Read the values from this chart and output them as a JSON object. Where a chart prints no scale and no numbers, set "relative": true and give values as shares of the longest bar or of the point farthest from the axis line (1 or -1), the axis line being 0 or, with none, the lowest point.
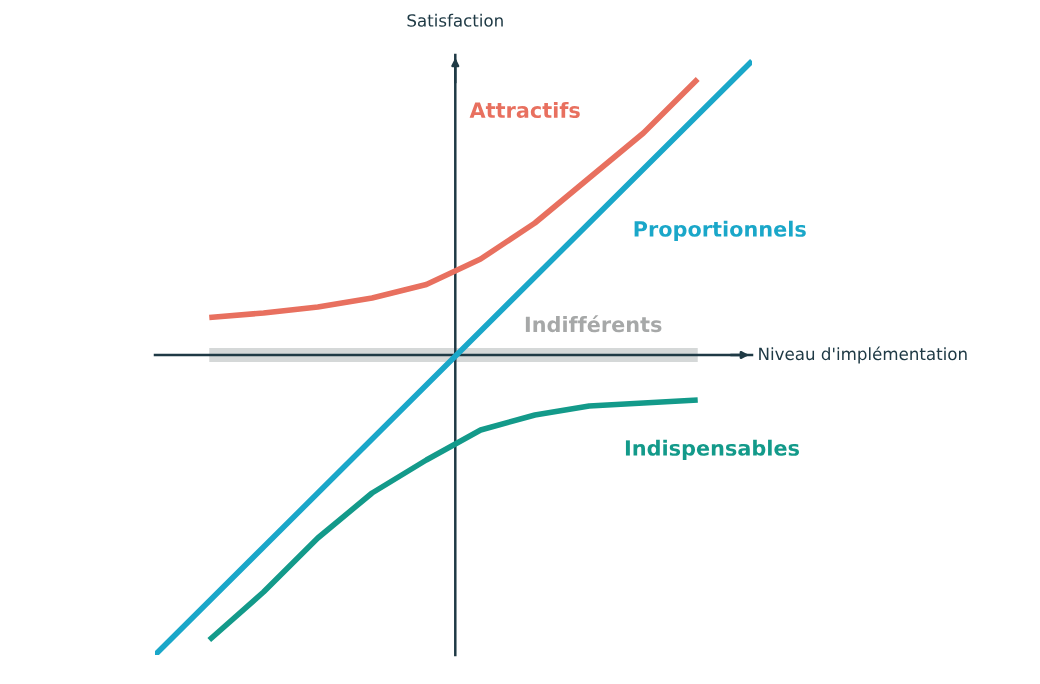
{
  "chart_data": {
    "type": "line",
    "relative": true,
    "xlabel": "Niveau d'implémentation",
    "ylabel": "Satisfaction",
    "marker": "none",
    "line_style": "solid",
    "categories": [
      null,
      null,
      null,
      null,
      null,
      null,
      null,
      null,
      null,
      null,
      null,
      null
    ],
    "series": [
      {
        "name": "Attractifs",
        "color": "#e8705f",
        "values": [
          null,
          0.125,
          0.14,
          0.16,
          0.19,
          0.235,
          0.32,
          0.44,
          0.59,
          0.74,
          0.92,
          null
        ]
      },
      {
        "name": "Proportionnels",
        "color": "#1aa7c9",
        "values": [
          -1,
          -0.82,
          -0.64,
          -0.46,
          -0.28,
          -0.1,
          0.08,
          0.26,
          0.44,
          0.62,
          0.8,
          0.98
        ]
      },
      {
        "name": "Indifférents",
        "color": "#d5d8d8",
        "values": [
          null,
          0,
          0,
          0,
          0,
          0,
          0,
          0,
          0,
          0,
          0,
          null
        ]
      },
      {
        "name": "Indispensables",
        "color": "#139a8a",
        "values": [
          null,
          -0.95,
          -0.79,
          -0.61,
          -0.46,
          -0.35,
          -0.25,
          -0.2,
          -0.17,
          -0.16,
          -0.15,
          null
        ]
      }
    ]
  }
}
